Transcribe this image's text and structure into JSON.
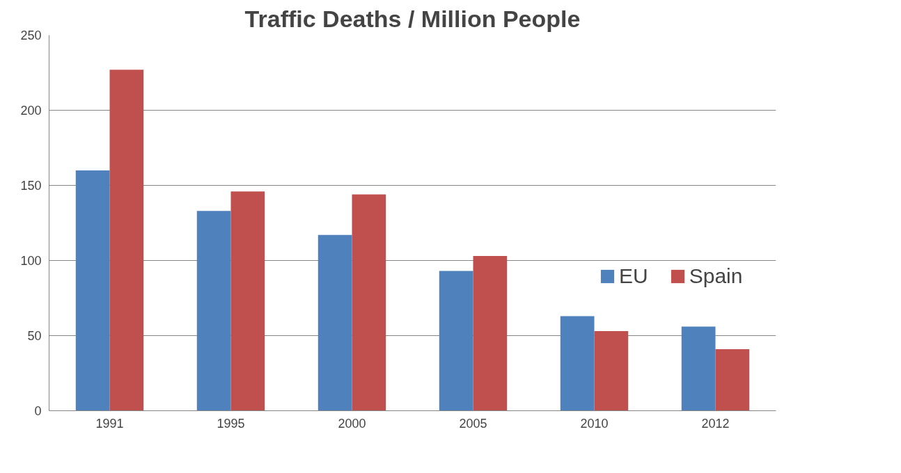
{
  "chart_data": {
    "type": "bar",
    "title": "Traffic Deaths / Million People",
    "categories": [
      "1991",
      "1995",
      "2000",
      "2005",
      "2010",
      "2012"
    ],
    "series": [
      {
        "name": "EU",
        "color": "#4f81bd",
        "values": [
          160,
          133,
          117,
          93,
          63,
          56
        ]
      },
      {
        "name": "Spain",
        "color": "#c0504d",
        "values": [
          227,
          146,
          144,
          103,
          53,
          41
        ]
      }
    ],
    "ylim": [
      0,
      250
    ],
    "yticks": [
      0,
      50,
      100,
      150,
      200,
      250
    ],
    "grid": "y",
    "legend": "right"
  }
}
